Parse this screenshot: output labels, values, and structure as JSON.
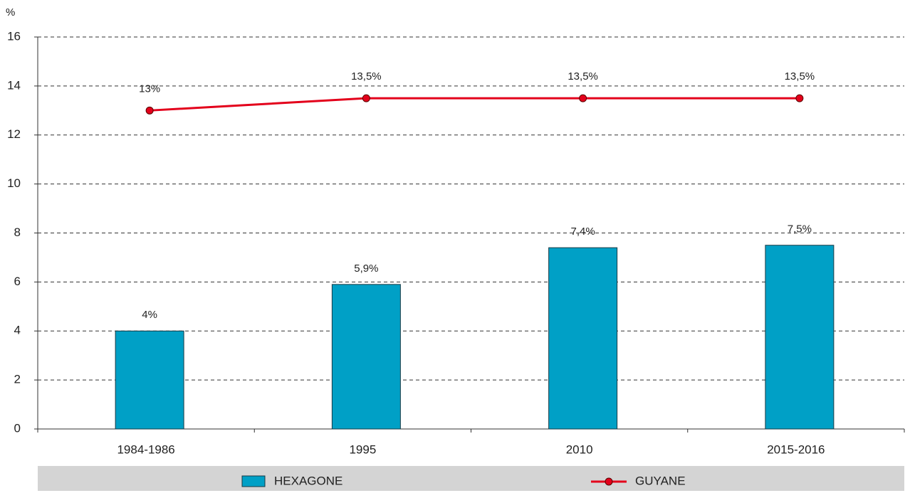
{
  "chart_data": {
    "type": "bar",
    "y_label": "%",
    "categories": [
      "1984-1986",
      "1995",
      "2010",
      "2015-2016"
    ],
    "series": [
      {
        "name": "HEXAGONE",
        "type": "bar",
        "color": "#00a0c6",
        "values": [
          4,
          5.9,
          7.4,
          7.5
        ],
        "value_labels": [
          "4%",
          "5,9%",
          "7,4%",
          "7,5%"
        ]
      },
      {
        "name": "GUYANE",
        "type": "line",
        "color": "#e3001b",
        "values": [
          13,
          13.5,
          13.5,
          13.5
        ],
        "value_labels": [
          "13%",
          "13,5%",
          "13,5%",
          "13,5%"
        ]
      }
    ],
    "ylim": [
      0,
      16
    ],
    "yticks": [
      0,
      2,
      4,
      6,
      8,
      10,
      12,
      14,
      16
    ],
    "grid": true,
    "legend": "bottom"
  }
}
